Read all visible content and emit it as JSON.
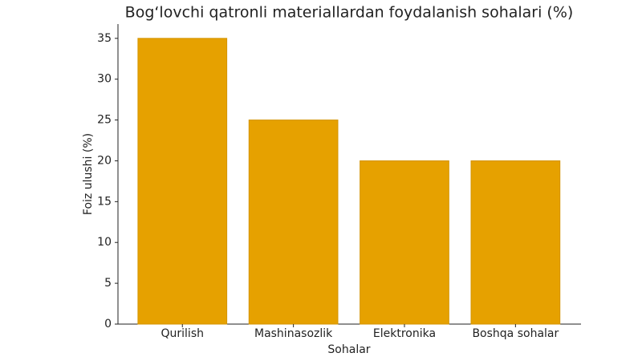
{
  "chart_data": {
    "type": "bar",
    "title": "Bog‘lovchi qatronli materiallardan foydalanish sohalari (%)",
    "x_label": "Sohalar",
    "y_label": "Foiz ulushi (%)",
    "categories": [
      "Qurilish",
      "Mashinasozlik",
      "Elektronika",
      "Boshqa sohalar"
    ],
    "values": [
      35,
      25,
      20,
      20
    ],
    "color": "#e6a100",
    "ylim": [
      0,
      36.75
    ],
    "yticks": [
      0,
      5,
      10,
      15,
      20,
      25,
      30,
      35
    ],
    "grid": false
  }
}
